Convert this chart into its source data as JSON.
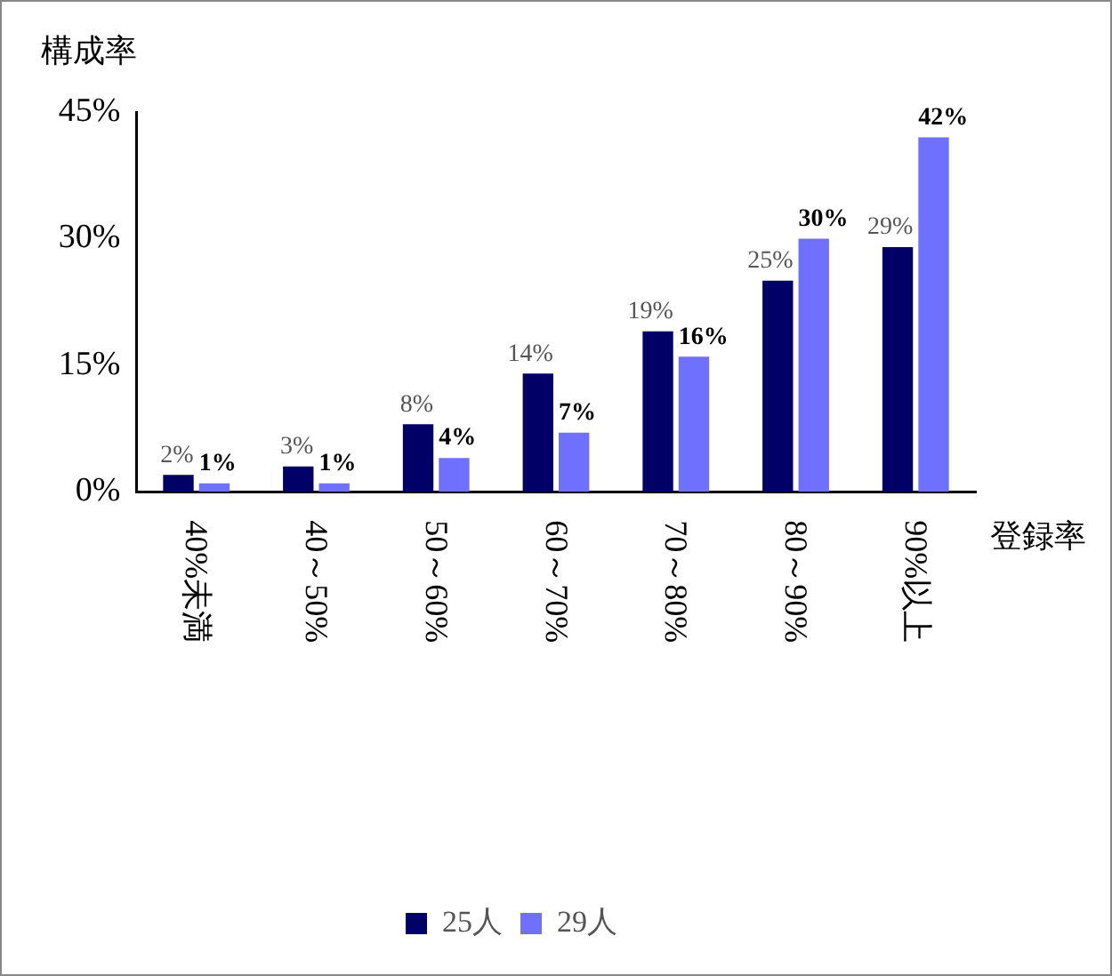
{
  "chart_data": {
    "type": "bar",
    "ylabel": "構成率",
    "xlabel": "登録率",
    "categories": [
      "40%未満",
      "40～50%",
      "50～60%",
      "60～70%",
      "70～80%",
      "80～90%",
      "90%以上"
    ],
    "series": [
      {
        "name": "25人",
        "color": "#000066",
        "values": [
          2,
          3,
          8,
          14,
          19,
          25,
          29
        ],
        "value_labels": [
          "2%",
          "3%",
          "8%",
          "14%",
          "19%",
          "25%",
          "29%"
        ]
      },
      {
        "name": "29人",
        "color": "#7070ff",
        "values": [
          1,
          1,
          4,
          7,
          16,
          30,
          42
        ],
        "value_labels": [
          "1%",
          "1%",
          "4%",
          "7%",
          "16%",
          "30%",
          "42%"
        ]
      }
    ],
    "ylim": [
      0,
      45
    ],
    "yticks": [
      {
        "value": 0,
        "label": "0%"
      },
      {
        "value": 15,
        "label": "15%"
      },
      {
        "value": 30,
        "label": "30%"
      },
      {
        "value": 45,
        "label": "45%"
      }
    ],
    "grid": false,
    "legend": "bottom"
  }
}
